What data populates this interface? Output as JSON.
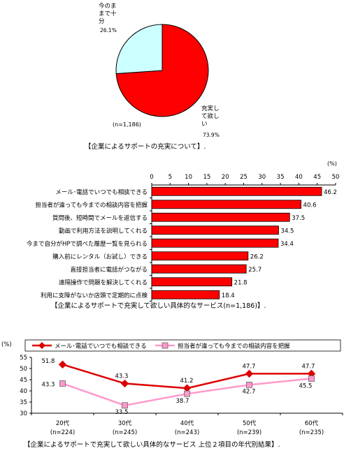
{
  "chart_data": [
    {
      "type": "pie",
      "slices": [
        {
          "label": "充実して欲しい",
          "value": 73.9,
          "value_label": "73.9%",
          "color": "#ff0000"
        },
        {
          "label": "今のままで十分",
          "value": 26.1,
          "value_label": "26.1%",
          "color": "#ccffff"
        }
      ],
      "sample_label": "(n=1,186)",
      "caption": "【企業によるサポートの充実について】."
    },
    {
      "type": "bar",
      "orientation": "horizontal",
      "unit_label": "(%)",
      "xlim": [
        0,
        50
      ],
      "ticks": [
        0,
        5,
        10,
        15,
        20,
        25,
        30,
        35,
        40,
        45,
        50
      ],
      "categories": [
        "メール･電話でいつでも相談できる",
        "担当者が違っても今までの相談内容を把握",
        "質問後、短時間でメールを返信する",
        "動画で利用方法を説明してくれる",
        "今まで自分がHPで調べた履歴一覧を見られる",
        "購入前にレンタル（お試し）できる",
        "直接担当者に電話がつながる",
        "遠隔操作で問題を解決してくれる",
        "利用に支障がないか店頭で定期的に点検"
      ],
      "values": [
        46.2,
        40.6,
        37.5,
        34.5,
        34.4,
        26.2,
        25.7,
        21.8,
        18.4
      ],
      "bar_color": "#ff0000",
      "caption": "【企業によるサポートで充実して欲しい具体的なサービス(n=1,186)】."
    },
    {
      "type": "line",
      "unit_label": "(%)",
      "ylim": [
        30,
        55
      ],
      "yticks": [
        30,
        35,
        40,
        45,
        50,
        55
      ],
      "categories": [
        "20代",
        "30代",
        "40代",
        "50代",
        "60代"
      ],
      "n_labels": [
        "(n=224)",
        "(n=245)",
        "(n=243)",
        "(n=239)",
        "(n=235)"
      ],
      "series": [
        {
          "name": "メール･電話でいつでも相談できる",
          "values": [
            51.8,
            43.3,
            41.2,
            47.7,
            47.7
          ],
          "color": "#dd0000",
          "marker": "diamond"
        },
        {
          "name": "担当者が違っても今までの相談内容を把握",
          "values": [
            43.3,
            33.5,
            38.7,
            42.7,
            45.5
          ],
          "color": "#ff99cc",
          "marker": "square"
        }
      ],
      "caption": "【企業によるサポートで充実して欲しい具体的なサービス 上位２項目の年代別結果】."
    }
  ]
}
